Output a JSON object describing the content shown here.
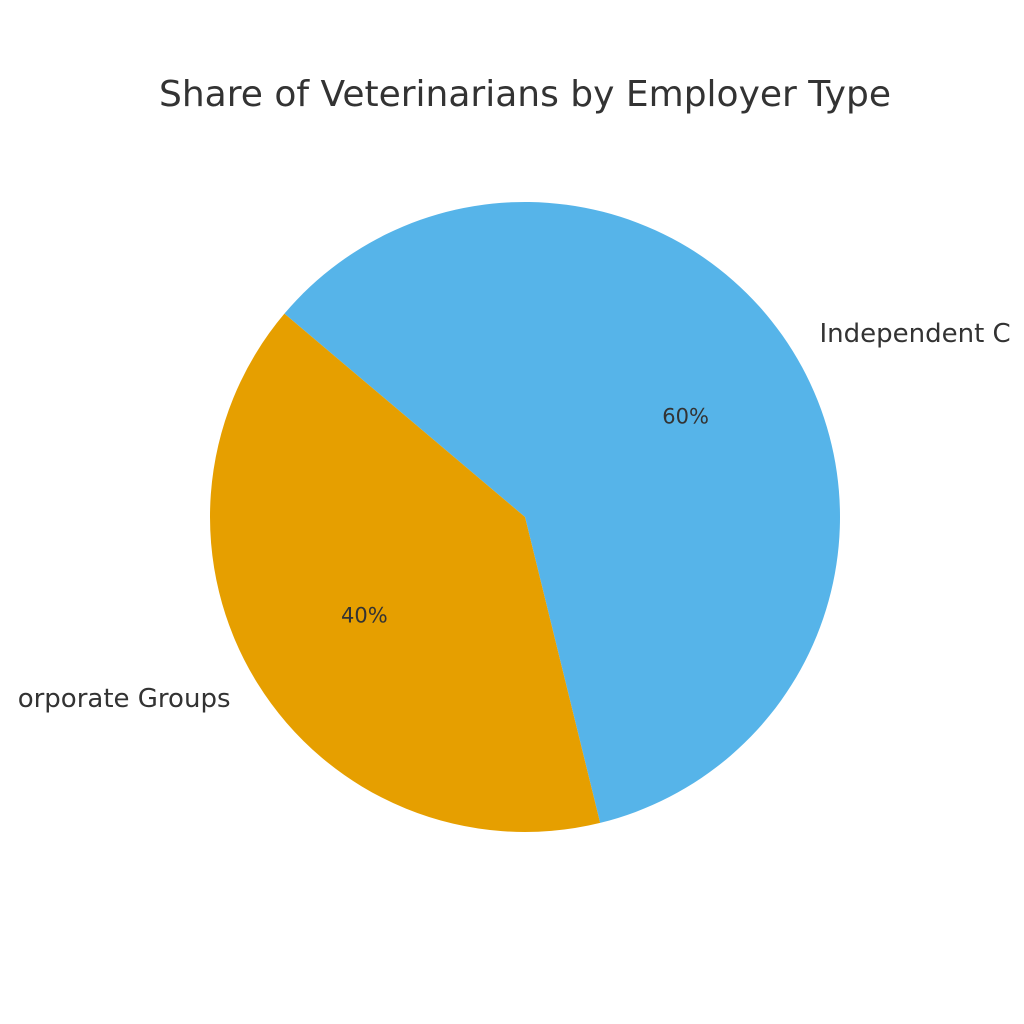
{
  "chart_data": {
    "type": "pie",
    "title": "Share of Veterinarians by Employer Type",
    "categories": [
      "Independent C",
      "orporate Groups"
    ],
    "values": [
      60,
      40
    ],
    "value_labels": [
      "60%",
      "40%"
    ],
    "colors": [
      "#56B4E9",
      "#E69F00"
    ]
  }
}
